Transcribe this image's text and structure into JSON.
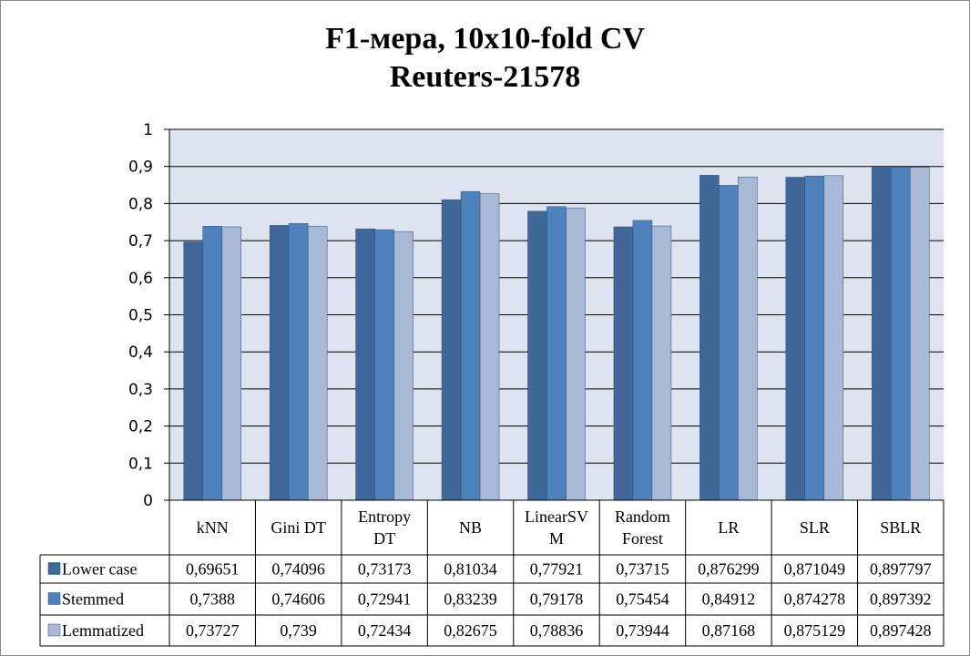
{
  "chart_data": {
    "type": "bar",
    "title": [
      "F1-мера, 10x10-fold CV",
      "Reuters-21578"
    ],
    "ylim": [
      0,
      1
    ],
    "yticks": [
      "0",
      "0,1",
      "0,2",
      "0,3",
      "0,4",
      "0,5",
      "0,6",
      "0,7",
      "0,8",
      "0,9",
      "1"
    ],
    "grid": true,
    "legend_placement": "data-table",
    "categories": [
      [
        "kNN"
      ],
      [
        "Gini DT"
      ],
      [
        "Entropy",
        "DT"
      ],
      [
        "NB"
      ],
      [
        "LinearSV",
        "M"
      ],
      [
        "Random",
        "Forest"
      ],
      [
        "LR"
      ],
      [
        "SLR"
      ],
      [
        "SBLR"
      ]
    ],
    "series": [
      {
        "name": "Lower case",
        "color": "#3f6797",
        "values": [
          0.69651,
          0.74096,
          0.73173,
          0.81034,
          0.77921,
          0.73715,
          0.876299,
          0.871049,
          0.897797
        ],
        "labels": [
          "0,69651",
          "0,74096",
          "0,73173",
          "0,81034",
          "0,77921",
          "0,73715",
          "0,876299",
          "0,871049",
          "0,897797"
        ]
      },
      {
        "name": "Stemmed",
        "color": "#4f81bd",
        "values": [
          0.7388,
          0.74606,
          0.72941,
          0.83239,
          0.79178,
          0.75454,
          0.84912,
          0.874278,
          0.897392
        ],
        "labels": [
          "0,7388",
          "0,74606",
          "0,72941",
          "0,83239",
          "0,79178",
          "0,75454",
          "0,84912",
          "0,874278",
          "0,897392"
        ]
      },
      {
        "name": "Lemmatized",
        "color": "#a8b9d8",
        "values": [
          0.73727,
          0.739,
          0.72434,
          0.82675,
          0.78836,
          0.73944,
          0.87168,
          0.875129,
          0.897428
        ],
        "labels": [
          "0,73727",
          "0,739",
          "0,72434",
          "0,82675",
          "0,78836",
          "0,73944",
          "0,87168",
          "0,875129",
          "0,897428"
        ]
      }
    ]
  }
}
